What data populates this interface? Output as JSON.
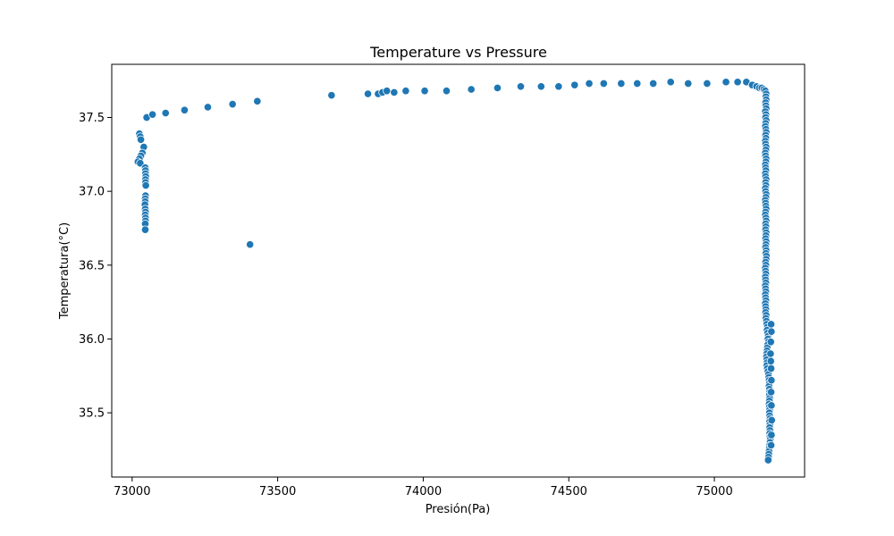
{
  "chart_data": {
    "type": "scatter",
    "title": "Temperature vs Pressure",
    "xlabel": "Presión(Pa)",
    "ylabel": "Temperatura(°C)",
    "xlim": [
      72930,
      75310
    ],
    "ylim": [
      35.065,
      37.86
    ],
    "xticks": [
      73000,
      73500,
      74000,
      74500,
      75000
    ],
    "yticks": [
      35.5,
      36.0,
      36.5,
      37.0,
      37.5
    ],
    "ytick_labels": [
      "35.5",
      "36.0",
      "36.5",
      "37.0",
      "37.5"
    ],
    "grid": false,
    "color": "#1f77b4",
    "series": [
      {
        "points": [
          [
            73025,
            37.39
          ],
          [
            73028,
            37.37
          ],
          [
            73030,
            37.35
          ],
          [
            73040,
            37.3
          ],
          [
            73035,
            37.26
          ],
          [
            73030,
            37.24
          ],
          [
            73025,
            37.22
          ],
          [
            73020,
            37.2
          ],
          [
            73028,
            37.19
          ],
          [
            73045,
            37.16
          ],
          [
            73046,
            37.14
          ],
          [
            73046,
            37.12
          ],
          [
            73047,
            37.1
          ],
          [
            73046,
            37.08
          ],
          [
            73046,
            37.06
          ],
          [
            73047,
            37.04
          ],
          [
            73046,
            36.97
          ],
          [
            73045,
            36.95
          ],
          [
            73045,
            36.93
          ],
          [
            73044,
            36.91
          ],
          [
            73045,
            36.88
          ],
          [
            73046,
            36.86
          ],
          [
            73045,
            36.84
          ],
          [
            73046,
            36.82
          ],
          [
            73046,
            36.8
          ],
          [
            73045,
            36.78
          ],
          [
            73045,
            36.74
          ],
          [
            73050,
            37.5
          ],
          [
            73070,
            37.52
          ],
          [
            73115,
            37.53
          ],
          [
            73180,
            37.55
          ],
          [
            73260,
            37.57
          ],
          [
            73345,
            37.59
          ],
          [
            73430,
            37.61
          ],
          [
            73405,
            36.64
          ],
          [
            73685,
            37.65
          ],
          [
            73810,
            37.66
          ],
          [
            73845,
            37.66
          ],
          [
            73860,
            37.67
          ],
          [
            73875,
            37.68
          ],
          [
            73900,
            37.67
          ],
          [
            73940,
            37.68
          ],
          [
            74005,
            37.68
          ],
          [
            74080,
            37.68
          ],
          [
            74165,
            37.69
          ],
          [
            74255,
            37.7
          ],
          [
            74335,
            37.71
          ],
          [
            74405,
            37.71
          ],
          [
            74465,
            37.71
          ],
          [
            74520,
            37.72
          ],
          [
            74570,
            37.73
          ],
          [
            74620,
            37.73
          ],
          [
            74680,
            37.73
          ],
          [
            74735,
            37.73
          ],
          [
            74790,
            37.73
          ],
          [
            74850,
            37.74
          ],
          [
            74910,
            37.73
          ],
          [
            74975,
            37.73
          ],
          [
            75040,
            37.74
          ],
          [
            75080,
            37.74
          ],
          [
            75110,
            37.74
          ],
          [
            75130,
            37.72
          ],
          [
            75145,
            37.71
          ],
          [
            75155,
            37.7
          ],
          [
            75163,
            37.7
          ],
          [
            75170,
            37.69
          ],
          [
            75175,
            37.68
          ],
          [
            75178,
            37.66
          ],
          [
            75177,
            37.64
          ],
          [
            75178,
            37.62
          ],
          [
            75176,
            37.6
          ],
          [
            75177,
            37.58
          ],
          [
            75178,
            37.56
          ],
          [
            75175,
            37.54
          ],
          [
            75177,
            37.52
          ],
          [
            75176,
            37.5
          ],
          [
            75178,
            37.48
          ],
          [
            75176,
            37.46
          ],
          [
            75175,
            37.44
          ],
          [
            75177,
            37.42
          ],
          [
            75178,
            37.4
          ],
          [
            75176,
            37.38
          ],
          [
            75177,
            37.36
          ],
          [
            75175,
            37.34
          ],
          [
            75176,
            37.32
          ],
          [
            75178,
            37.3
          ],
          [
            75177,
            37.28
          ],
          [
            75175,
            37.26
          ],
          [
            75176,
            37.24
          ],
          [
            75178,
            37.22
          ],
          [
            75177,
            37.2
          ],
          [
            75175,
            37.18
          ],
          [
            75176,
            37.16
          ],
          [
            75177,
            37.14
          ],
          [
            75175,
            37.12
          ],
          [
            75176,
            37.1
          ],
          [
            75178,
            37.08
          ],
          [
            75176,
            37.06
          ],
          [
            75177,
            37.04
          ],
          [
            75175,
            37.02
          ],
          [
            75176,
            37.0
          ],
          [
            75178,
            36.98
          ],
          [
            75177,
            36.96
          ],
          [
            75175,
            36.94
          ],
          [
            75176,
            36.92
          ],
          [
            75177,
            36.9
          ],
          [
            75178,
            36.88
          ],
          [
            75176,
            36.86
          ],
          [
            75175,
            36.84
          ],
          [
            75177,
            36.82
          ],
          [
            75178,
            36.8
          ],
          [
            75176,
            36.78
          ],
          [
            75177,
            36.76
          ],
          [
            75176,
            36.74
          ],
          [
            75178,
            36.72
          ],
          [
            75177,
            36.7
          ],
          [
            75176,
            36.68
          ],
          [
            75178,
            36.66
          ],
          [
            75177,
            36.64
          ],
          [
            75176,
            36.62
          ],
          [
            75178,
            36.6
          ],
          [
            75177,
            36.58
          ],
          [
            75179,
            36.56
          ],
          [
            75178,
            36.54
          ],
          [
            75176,
            36.52
          ],
          [
            75177,
            36.5
          ],
          [
            75175,
            36.48
          ],
          [
            75176,
            36.46
          ],
          [
            75177,
            36.44
          ],
          [
            75175,
            36.42
          ],
          [
            75176,
            36.4
          ],
          [
            75177,
            36.38
          ],
          [
            75175,
            36.36
          ],
          [
            75176,
            36.34
          ],
          [
            75177,
            36.32
          ],
          [
            75175,
            36.3
          ],
          [
            75176,
            36.28
          ],
          [
            75177,
            36.26
          ],
          [
            75175,
            36.24
          ],
          [
            75176,
            36.22
          ],
          [
            75177,
            36.2
          ],
          [
            75176,
            36.18
          ],
          [
            75178,
            36.16
          ],
          [
            75177,
            36.14
          ],
          [
            75179,
            36.12
          ],
          [
            75180,
            36.1
          ],
          [
            75182,
            36.08
          ],
          [
            75181,
            36.06
          ],
          [
            75183,
            36.04
          ],
          [
            75185,
            36.02
          ],
          [
            75184,
            36.0
          ],
          [
            75186,
            35.98
          ],
          [
            75183,
            35.96
          ],
          [
            75182,
            35.94
          ],
          [
            75181,
            35.92
          ],
          [
            75180,
            35.9
          ],
          [
            75179,
            35.88
          ],
          [
            75180,
            35.86
          ],
          [
            75181,
            35.84
          ],
          [
            75180,
            35.82
          ],
          [
            75182,
            35.8
          ],
          [
            75184,
            35.78
          ],
          [
            75186,
            35.76
          ],
          [
            75187,
            35.74
          ],
          [
            75188,
            35.72
          ],
          [
            75189,
            35.7
          ],
          [
            75188,
            35.68
          ],
          [
            75189,
            35.66
          ],
          [
            75190,
            35.64
          ],
          [
            75189,
            35.62
          ],
          [
            75190,
            35.6
          ],
          [
            75189,
            35.58
          ],
          [
            75188,
            35.56
          ],
          [
            75189,
            35.54
          ],
          [
            75190,
            35.52
          ],
          [
            75189,
            35.5
          ],
          [
            75190,
            35.48
          ],
          [
            75191,
            35.46
          ],
          [
            75190,
            35.44
          ],
          [
            75191,
            35.42
          ],
          [
            75190,
            35.4
          ],
          [
            75191,
            35.38
          ],
          [
            75190,
            35.36
          ],
          [
            75191,
            35.34
          ],
          [
            75192,
            35.32
          ],
          [
            75191,
            35.3
          ],
          [
            75190,
            35.28
          ],
          [
            75189,
            35.26
          ],
          [
            75188,
            35.24
          ],
          [
            75187,
            35.22
          ],
          [
            75186,
            35.2
          ],
          [
            75185,
            35.18
          ],
          [
            75195,
            36.1
          ],
          [
            75196,
            36.05
          ],
          [
            75194,
            35.98
          ],
          [
            75193,
            35.9
          ],
          [
            75194,
            35.85
          ],
          [
            75195,
            35.8
          ],
          [
            75196,
            35.72
          ],
          [
            75195,
            35.64
          ],
          [
            75196,
            35.55
          ],
          [
            75197,
            35.45
          ],
          [
            75196,
            35.35
          ],
          [
            75195,
            35.28
          ]
        ]
      }
    ]
  }
}
